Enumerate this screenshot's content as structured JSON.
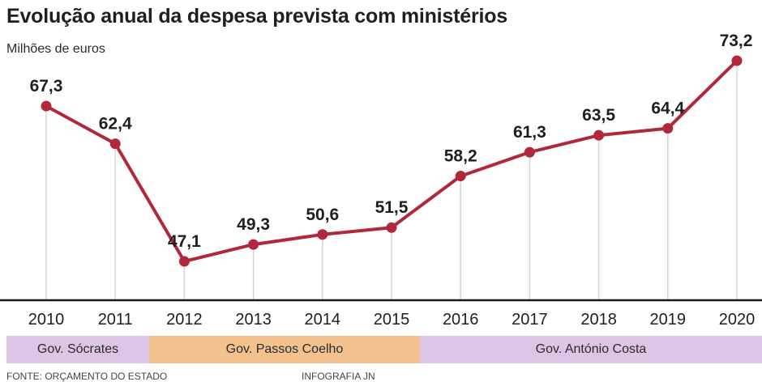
{
  "title": "Evolução anual da despesa prevista com ministérios",
  "unit_label": "Milhões de euros",
  "chart_data": {
    "type": "line",
    "title": "Evolução anual da despesa prevista com ministérios",
    "ylabel": "Milhões de euros",
    "xlabel": "",
    "categories": [
      "2010",
      "2011",
      "2012",
      "2013",
      "2014",
      "2015",
      "2016",
      "2017",
      "2018",
      "2019",
      "2020"
    ],
    "values": [
      67.3,
      62.4,
      47.1,
      49.3,
      50.6,
      51.5,
      58.2,
      61.3,
      63.5,
      64.4,
      73.2
    ],
    "value_labels": [
      "67,3",
      "62,4",
      "47,1",
      "49,3",
      "50,6",
      "51,5",
      "58,2",
      "61,3",
      "63,5",
      "64,4",
      "73,2"
    ],
    "ylim": [
      45,
      73.2
    ],
    "grid": false,
    "line_color": "#b0283a"
  },
  "governments": [
    {
      "label": "Gov. Sócrates",
      "color": "#dcc5e6"
    },
    {
      "label": "Gov. Passos Coelho",
      "color": "#f3c28f"
    },
    {
      "label": "Gov. António Costa",
      "color": "#dcc5e6"
    }
  ],
  "source": "Fonte: Orçamento do Estado",
  "credit": "Infografia JN"
}
